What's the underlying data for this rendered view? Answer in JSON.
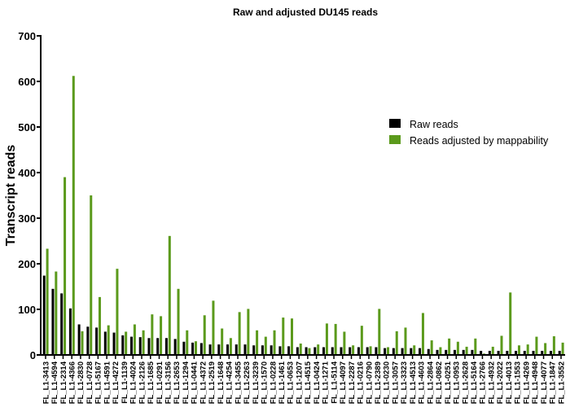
{
  "chart_data": {
    "type": "bar",
    "title": "Raw and adjusted DU145 reads",
    "xlabel": "",
    "ylabel": "Transcript reads",
    "ylim": [
      0,
      700
    ],
    "yticks": [
      0,
      100,
      200,
      300,
      400,
      500,
      600,
      700
    ],
    "grid": false,
    "legend_position": "right",
    "categories": [
      "FL_L1-3413",
      "FL_L1-4594",
      "FL_L1-2314",
      "FL_L1-4366",
      "FL_L1-2830",
      "FL_L1-0728",
      "FL_L1-5167",
      "FL_L1-4591",
      "FL_L1-4272",
      "FL_L1-1139",
      "FL_L1-4024",
      "FL_L1-2126",
      "FL_L1-1685",
      "FL_L1-0291",
      "FL_L1-3156",
      "FL_L1-2653",
      "FL_L1-1294",
      "FL_L1-0441",
      "FL_L1-4372",
      "FL_L1-2519",
      "FL_L1-1648",
      "FL_L1-4254",
      "FL_L1-3455",
      "FL_L1-2263",
      "FL_L1-3239",
      "FL_L1-1570",
      "FL_L1-0228",
      "FL_L1-1461",
      "FL_L1-0653",
      "FL_L1-1207",
      "FL_L1-4515",
      "FL_L1-0424",
      "FL_L1-1271",
      "FL_L1-5114",
      "FL_L1-4097",
      "FL_L1-2287",
      "FL_L1-0216",
      "FL_L1-0790",
      "FL_L1-2389",
      "FL_L1-0230",
      "FL_L1-3057",
      "FL_L1-3323",
      "FL_L1-4513",
      "FL_L1-4603",
      "FL_L1-2864",
      "FL_L1-0862",
      "FL_L1-0251",
      "FL_L1-0953",
      "FL_L1-2628",
      "FL_L1-5164",
      "FL_L1-2766",
      "FL_L1-4932",
      "FL_L1-2022",
      "FL_L1-4013",
      "FL_L1-1553",
      "FL_L1-4269",
      "FL_L1-4948",
      "FL_L1-4077",
      "FL_L1-1847",
      "FL_L1-3552"
    ],
    "series": [
      {
        "name": "Raw reads",
        "color": "#000000",
        "values": [
          174,
          145,
          135,
          102,
          67,
          62,
          60,
          51,
          49,
          43,
          40,
          39,
          37,
          37,
          37,
          35,
          29,
          27,
          26,
          23,
          23,
          23,
          23,
          23,
          21,
          21,
          21,
          19,
          19,
          17,
          17,
          17,
          17,
          17,
          17,
          17,
          17,
          17,
          17,
          15,
          15,
          15,
          15,
          15,
          13,
          11,
          11,
          11,
          11,
          11,
          9,
          9,
          9,
          9,
          9,
          9,
          9,
          9,
          9,
          9
        ]
      },
      {
        "name": "Reads adjusted by mappability",
        "color": "#5b9a1c",
        "values": [
          233,
          183,
          390,
          612,
          52,
          350,
          127,
          65,
          189,
          51,
          67,
          54,
          89,
          85,
          261,
          145,
          54,
          30,
          87,
          119,
          58,
          37,
          94,
          101,
          54,
          40,
          54,
          82,
          80,
          25,
          15,
          23,
          69,
          68,
          51,
          21,
          64,
          19,
          101,
          17,
          52,
          60,
          21,
          92,
          32,
          17,
          36,
          29,
          18,
          36,
          3,
          18,
          42,
          137,
          21,
          23,
          40,
          26,
          41,
          27
        ]
      }
    ]
  }
}
